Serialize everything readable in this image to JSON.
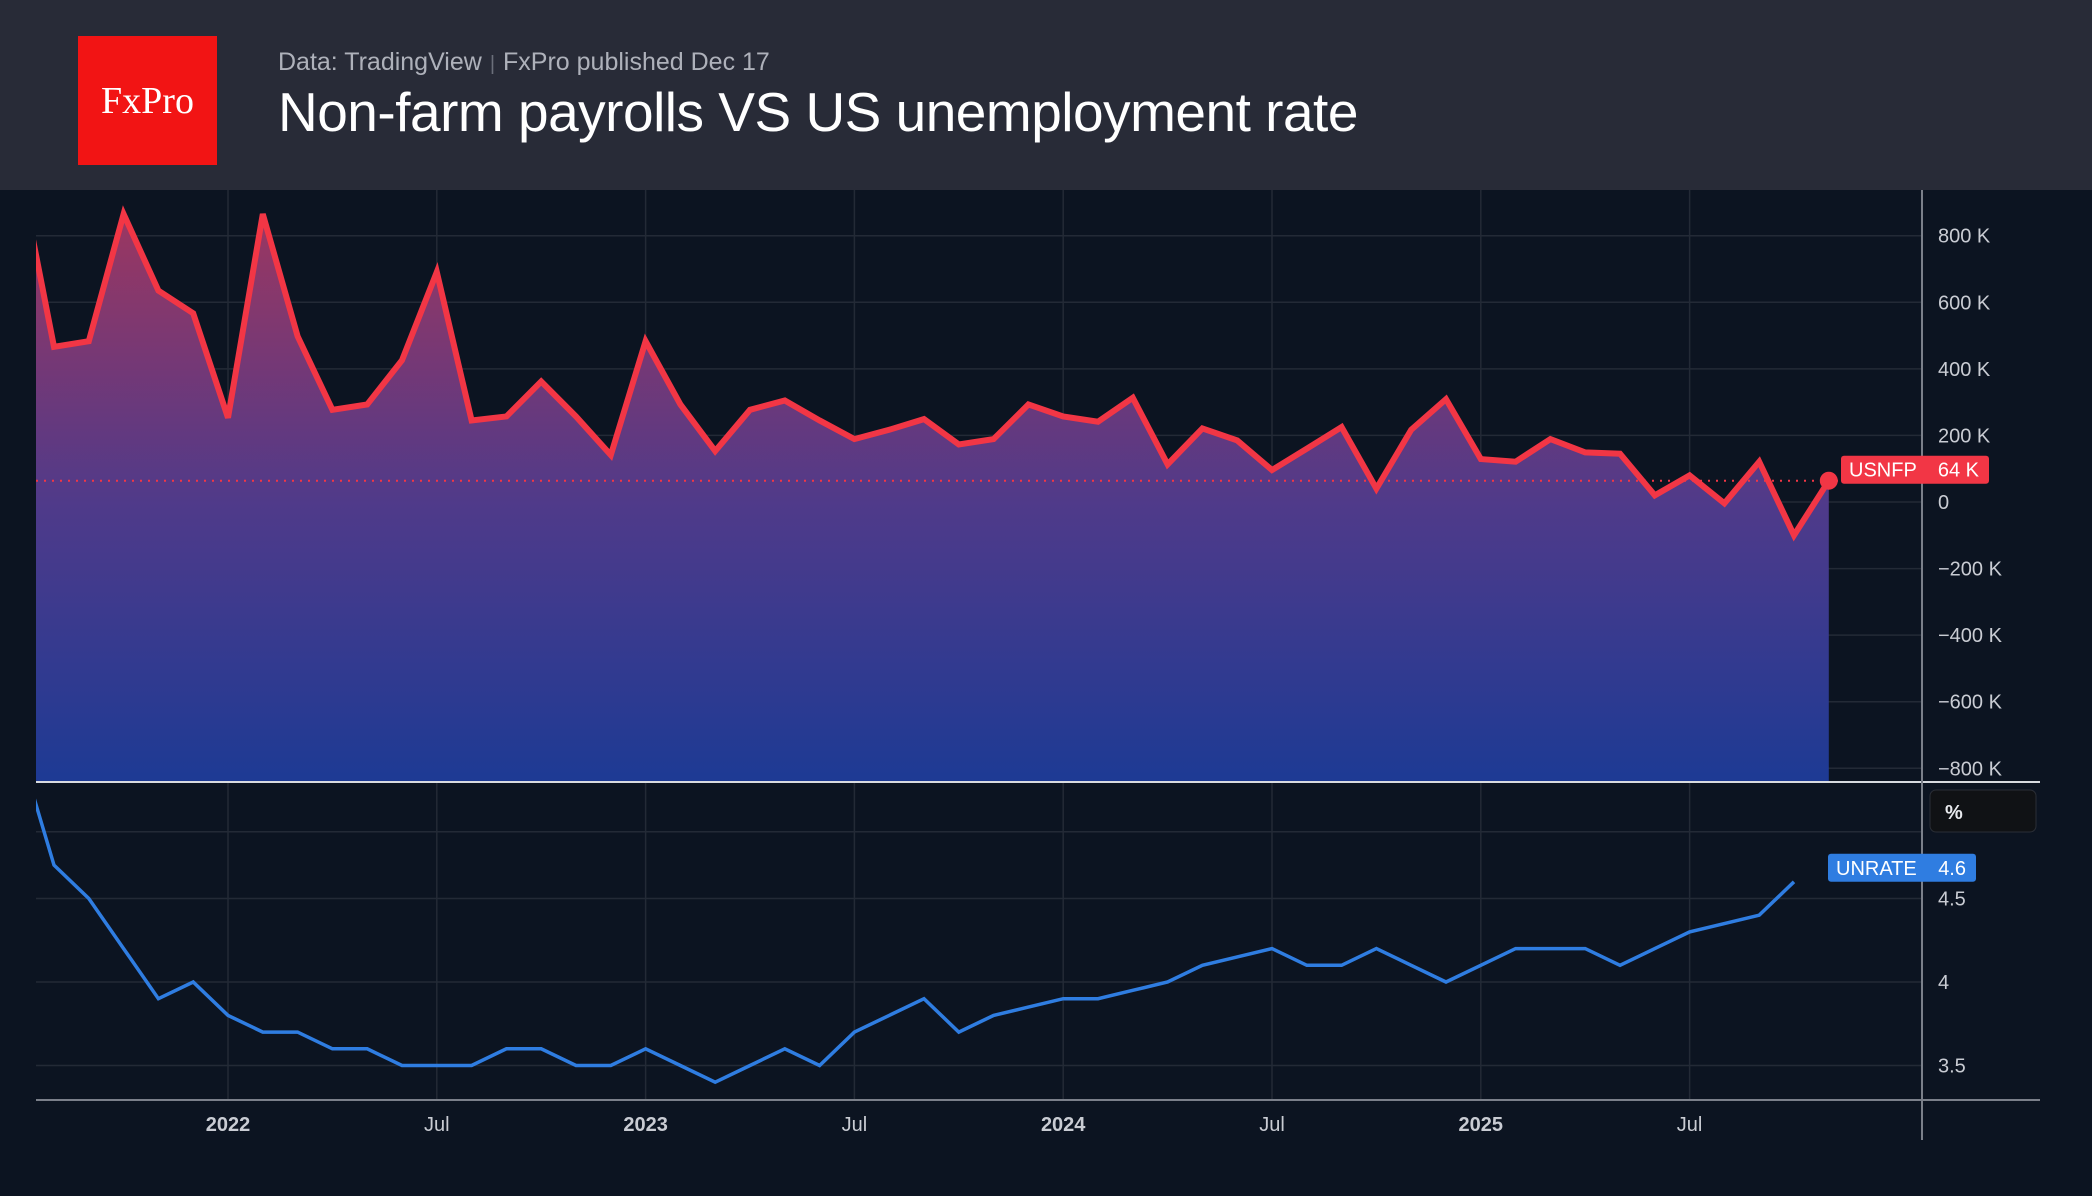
{
  "header": {
    "logo_text": "FxPro",
    "source": "Data: TradingView",
    "published": "FxPro published Dec 17",
    "title": "Non-farm payrolls VS US unemployment rate"
  },
  "colors": {
    "nfp": "#f23645",
    "unrate": "#2f7de1",
    "background": "#0c1421",
    "header": "#282b37",
    "logo": "#f21414"
  },
  "chart_data": [
    {
      "type": "area",
      "series": [
        {
          "name": "USNFP",
          "unit": "K",
          "last_value_label": "64 K",
          "x": [
            "2021-07",
            "2021-08",
            "2021-09",
            "2021-10",
            "2021-11",
            "2021-12",
            "2022-01",
            "2022-02",
            "2022-03",
            "2022-04",
            "2022-05",
            "2022-06",
            "2022-07",
            "2022-08",
            "2022-09",
            "2022-10",
            "2022-11",
            "2022-12",
            "2023-01",
            "2023-02",
            "2023-03",
            "2023-04",
            "2023-05",
            "2023-06",
            "2023-07",
            "2023-08",
            "2023-09",
            "2023-10",
            "2023-11",
            "2023-12",
            "2024-01",
            "2024-02",
            "2024-03",
            "2024-04",
            "2024-05",
            "2024-06",
            "2024-07",
            "2024-08",
            "2024-09",
            "2024-10",
            "2024-11",
            "2024-12",
            "2025-01",
            "2025-02",
            "2025-03",
            "2025-04",
            "2025-05",
            "2025-06",
            "2025-07",
            "2025-08",
            "2025-09",
            "2025-10",
            "2025-11"
          ],
          "values": [
            1000,
            466,
            483,
            865,
            635,
            567,
            253,
            865,
            498,
            277,
            293,
            426,
            691,
            245,
            257,
            362,
            257,
            141,
            483,
            293,
            153,
            277,
            305,
            245,
            189,
            217,
            249,
            173,
            189,
            293,
            257,
            241,
            313,
            113,
            221,
            185,
            96,
            160,
            225,
            40,
            217,
            309,
            129,
            121,
            189,
            149,
            145,
            20,
            80,
            -4,
            121,
            -100,
            64
          ]
        }
      ],
      "y_ticks": [
        "800 K",
        "600 K",
        "400 K",
        "200 K",
        "0",
        "−200 K",
        "−400 K",
        "−600 K",
        "−800 K"
      ],
      "y_tick_values": [
        800,
        600,
        400,
        200,
        0,
        -200,
        -400,
        -600,
        -800
      ],
      "ylim": [
        -850,
        920
      ],
      "grid": true
    },
    {
      "type": "line",
      "unit_label": "%",
      "series": [
        {
          "name": "UNRATE",
          "last_value_label": "4.6",
          "x": [
            "2021-07",
            "2021-08",
            "2021-09",
            "2021-10",
            "2021-11",
            "2021-12",
            "2022-01",
            "2022-02",
            "2022-03",
            "2022-04",
            "2022-05",
            "2022-06",
            "2022-07",
            "2022-08",
            "2022-09",
            "2022-10",
            "2022-11",
            "2022-12",
            "2023-01",
            "2023-02",
            "2023-03",
            "2023-04",
            "2023-05",
            "2023-06",
            "2023-07",
            "2023-08",
            "2023-09",
            "2023-10",
            "2023-11",
            "2023-12",
            "2024-01",
            "2024-02",
            "2024-03",
            "2024-04",
            "2024-05",
            "2024-06",
            "2024-07",
            "2024-08",
            "2024-09",
            "2024-10",
            "2024-11",
            "2024-12",
            "2025-01",
            "2025-02",
            "2025-03",
            "2025-04",
            "2025-05",
            "2025-06",
            "2025-07",
            "2025-08",
            "2025-09",
            "2025-10"
          ],
          "values": [
            5.4,
            4.7,
            4.5,
            4.2,
            3.9,
            4.0,
            3.8,
            3.7,
            3.7,
            3.6,
            3.6,
            3.5,
            3.5,
            3.5,
            3.6,
            3.6,
            3.5,
            3.5,
            3.6,
            3.5,
            3.4,
            3.5,
            3.6,
            3.5,
            3.7,
            3.8,
            3.9,
            3.7,
            3.8,
            3.85,
            3.9,
            3.9,
            3.95,
            4.0,
            4.1,
            4.15,
            4.2,
            4.1,
            4.1,
            4.2,
            4.1,
            4.0,
            4.1,
            4.2,
            4.2,
            4.2,
            4.1,
            4.2,
            4.3,
            4.35,
            4.4,
            4.6
          ]
        }
      ],
      "y_ticks": [
        "4.5",
        "4",
        "3.5"
      ],
      "y_tick_values": [
        4.5,
        4.0,
        3.5
      ],
      "grid": true
    }
  ],
  "x_ticks": [
    {
      "label": "2022",
      "date": "2022-01",
      "year": true
    },
    {
      "label": "Jul",
      "date": "2022-07",
      "year": false
    },
    {
      "label": "2023",
      "date": "2023-01",
      "year": true
    },
    {
      "label": "Jul",
      "date": "2023-07",
      "year": false
    },
    {
      "label": "2024",
      "date": "2024-01",
      "year": true
    },
    {
      "label": "Jul",
      "date": "2024-07",
      "year": false
    },
    {
      "label": "2025",
      "date": "2025-01",
      "year": true
    },
    {
      "label": "Jul",
      "date": "2025-07",
      "year": false
    }
  ]
}
